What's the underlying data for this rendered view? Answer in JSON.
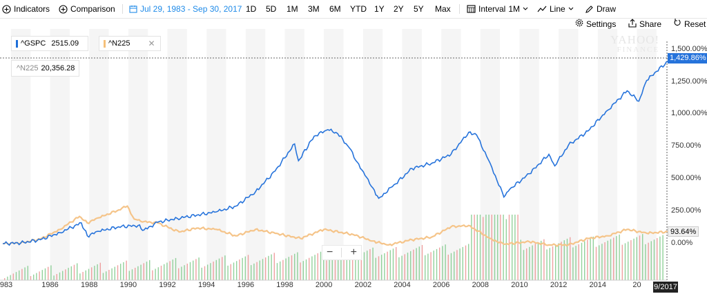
{
  "toolbar": {
    "indicators": "Indicators",
    "comparison": "Comparison",
    "date_range": "Jul 29, 1983 - Sep 30, 2017",
    "ranges": [
      "1D",
      "5D",
      "1M",
      "3M",
      "6M",
      "YTD",
      "1Y",
      "2Y",
      "5Y",
      "Max"
    ],
    "interval_label": "Interval",
    "interval_value": "1M",
    "chart_style": "Line",
    "draw": "Draw"
  },
  "subbar": {
    "settings": "Settings",
    "share": "Share",
    "reset": "Reset"
  },
  "legend": [
    {
      "symbol": "^GSPC",
      "value": "2515.09",
      "color": "#1e6fd9"
    },
    {
      "symbol": "^N225",
      "value": "",
      "color": "#f5c07a"
    }
  ],
  "tooltip": {
    "symbol": "^N225",
    "value": "20,356.28"
  },
  "watermark": {
    "line1": "YAHOO!",
    "line2": "FINANCE"
  },
  "y_ticks": [
    "1,500.00%",
    "1,250.00%",
    "1,000.00%",
    "750.00%",
    "500.00%",
    "250.00%",
    "0.00%"
  ],
  "badges": {
    "gspc": "1,429.86%",
    "n225": "93.64%",
    "x_current": "9/2017"
  },
  "colors": {
    "gspc": "#2673db",
    "n225": "#f5c489",
    "vol_up": "#7fc98a",
    "vol_down": "#ec8f8f",
    "badge_gspc": "#2673db",
    "badge_n225": "#f0f0f0"
  },
  "chart_data": {
    "type": "line",
    "x_tick_labels": [
      "983",
      "1986",
      "1988",
      "1990",
      "1992",
      "1994",
      "1996",
      "1998",
      "2000",
      "2002",
      "2004",
      "2006",
      "2008",
      "2010",
      "2012",
      "2014",
      "20"
    ],
    "ylim": [
      -160,
      1550
    ],
    "y_unit": "%",
    "series": [
      {
        "name": "^GSPC",
        "x": [
          1983.58,
          1984.5,
          1985.5,
          1986.5,
          1987.6,
          1987.9,
          1988.5,
          1989.5,
          1990.5,
          1990.8,
          1991.5,
          1992.5,
          1993.5,
          1994.5,
          1995.5,
          1996.5,
          1997.5,
          1998.5,
          1998.7,
          1999.5,
          2000.2,
          2000.7,
          2001.3,
          2001.7,
          2002.5,
          2002.8,
          2003.5,
          2004.5,
          2005.5,
          2006.5,
          2007.4,
          2007.8,
          2008.5,
          2009.2,
          2009.5,
          2010.5,
          2011.5,
          2011.8,
          2012.5,
          2013.5,
          2014.5,
          2015.5,
          2016.1,
          2016.5,
          2017.0,
          2017.75
        ],
        "values": [
          0,
          5,
          30,
          85,
          160,
          60,
          95,
          130,
          140,
          105,
          165,
          195,
          220,
          245,
          290,
          400,
          560,
          770,
          640,
          830,
          880,
          850,
          740,
          630,
          430,
          350,
          440,
          580,
          620,
          690,
          860,
          840,
          620,
          360,
          420,
          540,
          690,
          600,
          760,
          870,
          1030,
          1180,
          1100,
          1260,
          1330,
          1429.86
        ]
      },
      {
        "name": "^N225",
        "x": [
          1983.58,
          1984.5,
          1985.5,
          1986.5,
          1987.5,
          1987.9,
          1988.5,
          1989.5,
          1989.95,
          1990.3,
          1990.8,
          1991.5,
          1992.6,
          1993.5,
          1994.5,
          1995.5,
          1996.5,
          1997.5,
          1998.8,
          2000.0,
          2001.5,
          2002.5,
          2003.3,
          2004.5,
          2005.5,
          2006.5,
          2007.4,
          2008.5,
          2009.2,
          2010.5,
          2011.5,
          2012.5,
          2013.5,
          2014.5,
          2015.5,
          2016.5,
          2017.75
        ],
        "values": [
          0,
          5,
          35,
          110,
          210,
          160,
          200,
          260,
          290,
          190,
          170,
          160,
          90,
          120,
          110,
          60,
          110,
          80,
          40,
          110,
          70,
          20,
          -10,
          30,
          50,
          130,
          140,
          40,
          -5,
          15,
          -10,
          -10,
          40,
          60,
          110,
          80,
          93.64
        ]
      }
    ]
  }
}
